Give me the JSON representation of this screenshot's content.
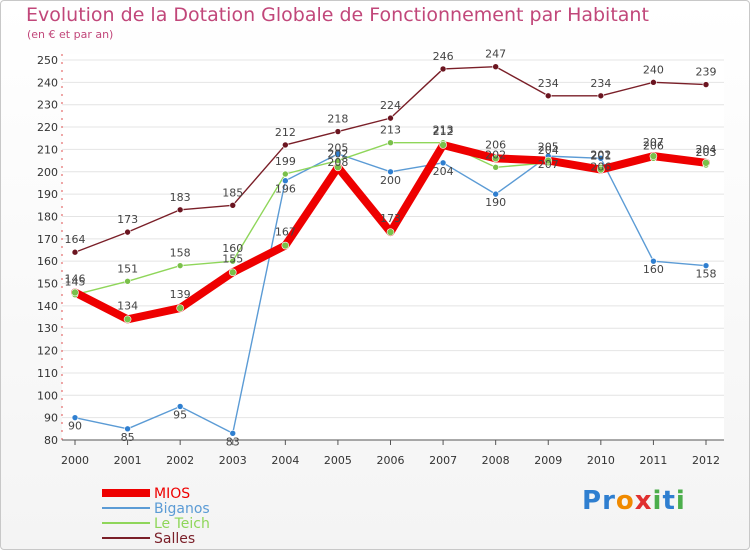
{
  "chart_data": {
    "type": "line",
    "title": "Evolution de la Dotation Globale de Fonctionnement par Habitant",
    "subtitle": "(en € et par an)",
    "xlabel": "",
    "ylabel": "",
    "ylim": [
      80,
      250
    ],
    "yticks": [
      80,
      90,
      100,
      110,
      120,
      130,
      140,
      150,
      160,
      170,
      180,
      190,
      200,
      210,
      220,
      230,
      240,
      250
    ],
    "categories": [
      "2000",
      "2001",
      "2002",
      "2003",
      "2004",
      "2005",
      "2006",
      "2007",
      "2008",
      "2009",
      "2010",
      "2011",
      "2012"
    ],
    "legend_position": "bottom-left",
    "grid": true,
    "series": [
      {
        "name": "Salles",
        "color": "#7a1f28",
        "values": [
          164,
          173,
          183,
          185,
          212,
          218,
          224,
          246,
          247,
          234,
          234,
          240,
          239
        ]
      },
      {
        "name": "Biganos",
        "color": "#5b9bd5",
        "values": [
          90,
          85,
          95,
          83,
          196,
          208,
          200,
          204,
          190,
          207,
          206,
          160,
          158
        ]
      },
      {
        "name": "Le Teich",
        "color": "#8fd65a",
        "values": [
          145,
          151,
          158,
          160,
          199,
          205,
          213,
          213,
          202,
          204,
          202,
          206,
          203
        ]
      },
      {
        "name": "MIOS",
        "color": "#ee0000",
        "values": [
          146,
          134,
          139,
          155,
          167,
          202,
          173,
          212,
          206,
          205,
          201,
          207,
          204
        ]
      }
    ]
  },
  "legend": [
    {
      "name": "MIOS",
      "color": "#ee0000"
    },
    {
      "name": "Biganos",
      "color": "#5b9bd5"
    },
    {
      "name": "Le Teich",
      "color": "#8fd65a"
    },
    {
      "name": "Salles",
      "color": "#7a1f28"
    }
  ],
  "logo": {
    "text": "Proxiti",
    "letters": [
      "P",
      "r",
      "o",
      "x",
      "i",
      "t",
      "i"
    ],
    "colors": [
      "#2f7fd0",
      "#2f7fd0",
      "#f08a00",
      "#e03030",
      "#4cae4c",
      "#2f7fd0",
      "#4cae4c"
    ]
  }
}
